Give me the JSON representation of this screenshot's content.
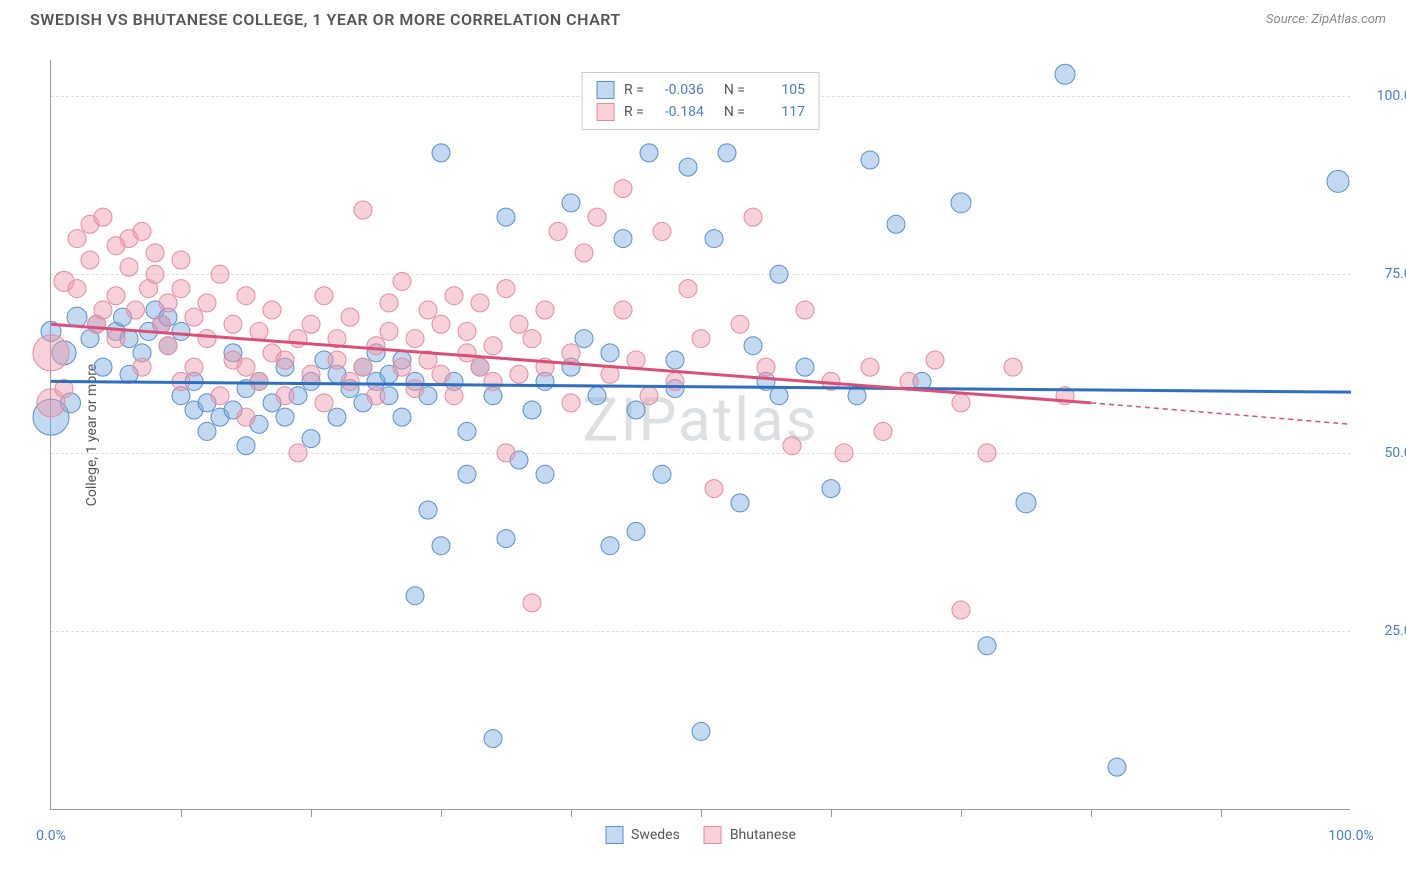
{
  "title": "SWEDISH VS BHUTANESE COLLEGE, 1 YEAR OR MORE CORRELATION CHART",
  "source": "Source: ZipAtlas.com",
  "ylabel": "College, 1 year or more",
  "watermark": "ZIPatlas",
  "xlim": [
    0,
    100
  ],
  "ylim": [
    0,
    105
  ],
  "yticks": [
    {
      "v": 25,
      "label": "25.0%"
    },
    {
      "v": 50,
      "label": "50.0%"
    },
    {
      "v": 75,
      "label": "75.0%"
    },
    {
      "v": 100,
      "label": "100.0%"
    }
  ],
  "xticks_minor": [
    10,
    20,
    30,
    40,
    50,
    60,
    70,
    80,
    90
  ],
  "xlabels": [
    {
      "v": 0,
      "label": "0.0%"
    },
    {
      "v": 100,
      "label": "100.0%"
    }
  ],
  "series": [
    {
      "name": "Swedes",
      "color_fill": "rgba(120, 170, 225, 0.45)",
      "color_stroke": "#5b8fc9",
      "line_color": "#2e6fc0",
      "stats": {
        "R": "-0.036",
        "N": "105"
      },
      "trend": {
        "x1": 0,
        "y1": 60,
        "x2": 100,
        "y2": 58.5
      },
      "points": [
        [
          0,
          55,
          18
        ],
        [
          1,
          64,
          12
        ],
        [
          1.5,
          57,
          10
        ],
        [
          0,
          67,
          10
        ],
        [
          2,
          69,
          10
        ],
        [
          3,
          66,
          9
        ],
        [
          3.5,
          68,
          9
        ],
        [
          4,
          62,
          9
        ],
        [
          5,
          67,
          9
        ],
        [
          5.5,
          69,
          9
        ],
        [
          6,
          66,
          9
        ],
        [
          6,
          61,
          9
        ],
        [
          7,
          64,
          9
        ],
        [
          7.5,
          67,
          9
        ],
        [
          8,
          70,
          9
        ],
        [
          8.5,
          68,
          9
        ],
        [
          9,
          65,
          9
        ],
        [
          9,
          69,
          9
        ],
        [
          10,
          67,
          9
        ],
        [
          10,
          58,
          9
        ],
        [
          11,
          60,
          9
        ],
        [
          11,
          56,
          9
        ],
        [
          12,
          57,
          9
        ],
        [
          12,
          53,
          9
        ],
        [
          13,
          55,
          9
        ],
        [
          14,
          56,
          9
        ],
        [
          14,
          64,
          9
        ],
        [
          15,
          59,
          9
        ],
        [
          15,
          51,
          9
        ],
        [
          16,
          54,
          9
        ],
        [
          16,
          60,
          9
        ],
        [
          17,
          57,
          9
        ],
        [
          18,
          55,
          9
        ],
        [
          18,
          62,
          9
        ],
        [
          19,
          58,
          9
        ],
        [
          20,
          60,
          9
        ],
        [
          20,
          52,
          9
        ],
        [
          21,
          63,
          9
        ],
        [
          22,
          61,
          9
        ],
        [
          22,
          55,
          9
        ],
        [
          23,
          59,
          9
        ],
        [
          24,
          62,
          9
        ],
        [
          24,
          57,
          9
        ],
        [
          25,
          60,
          9
        ],
        [
          25,
          64,
          9
        ],
        [
          26,
          58,
          9
        ],
        [
          26,
          61,
          9
        ],
        [
          27,
          55,
          9
        ],
        [
          27,
          63,
          9
        ],
        [
          28,
          30,
          9
        ],
        [
          28,
          60,
          9
        ],
        [
          29,
          58,
          9
        ],
        [
          29,
          42,
          9
        ],
        [
          30,
          37,
          9
        ],
        [
          30,
          92,
          9
        ],
        [
          31,
          60,
          9
        ],
        [
          32,
          53,
          9
        ],
        [
          32,
          47,
          9
        ],
        [
          33,
          62,
          9
        ],
        [
          34,
          58,
          9
        ],
        [
          34,
          10,
          9
        ],
        [
          35,
          38,
          9
        ],
        [
          35,
          83,
          9
        ],
        [
          36,
          49,
          9
        ],
        [
          37,
          56,
          9
        ],
        [
          38,
          47,
          9
        ],
        [
          38,
          60,
          9
        ],
        [
          40,
          85,
          9
        ],
        [
          40,
          62,
          9
        ],
        [
          41,
          66,
          9
        ],
        [
          42,
          58,
          9
        ],
        [
          43,
          37,
          9
        ],
        [
          43,
          64,
          9
        ],
        [
          44,
          80,
          9
        ],
        [
          45,
          56,
          9
        ],
        [
          45,
          39,
          9
        ],
        [
          46,
          92,
          9
        ],
        [
          47,
          47,
          9
        ],
        [
          48,
          59,
          9
        ],
        [
          48,
          63,
          9
        ],
        [
          49,
          90,
          9
        ],
        [
          50,
          11,
          9
        ],
        [
          51,
          80,
          9
        ],
        [
          52,
          92,
          9
        ],
        [
          53,
          43,
          9
        ],
        [
          54,
          65,
          9
        ],
        [
          55,
          60,
          9
        ],
        [
          56,
          75,
          9
        ],
        [
          56,
          58,
          9
        ],
        [
          58,
          62,
          9
        ],
        [
          60,
          45,
          9
        ],
        [
          62,
          58,
          9
        ],
        [
          63,
          91,
          9
        ],
        [
          65,
          82,
          9
        ],
        [
          67,
          60,
          9
        ],
        [
          70,
          85,
          10
        ],
        [
          72,
          23,
          9
        ],
        [
          75,
          43,
          10
        ],
        [
          78,
          103,
          10
        ],
        [
          82,
          6,
          9
        ],
        [
          99,
          88,
          11
        ]
      ]
    },
    {
      "name": "Bhutanese",
      "color_fill": "rgba(240, 150, 170, 0.45)",
      "color_stroke": "#e28ca0",
      "line_color": "#d94f78",
      "stats": {
        "R": "-0.184",
        "N": "117"
      },
      "trend": {
        "x1": 0,
        "y1": 68,
        "x2": 80,
        "y2": 57
      },
      "trend_dash": {
        "x1": 80,
        "y1": 57,
        "x2": 100,
        "y2": 54
      },
      "points": [
        [
          0,
          64,
          18
        ],
        [
          0,
          57,
          14
        ],
        [
          1,
          74,
          10
        ],
        [
          1,
          59,
          9
        ],
        [
          2,
          80,
          9
        ],
        [
          2,
          73,
          9
        ],
        [
          3,
          82,
          9
        ],
        [
          3,
          77,
          9
        ],
        [
          3.5,
          68,
          9
        ],
        [
          4,
          83,
          9
        ],
        [
          4,
          70,
          9
        ],
        [
          5,
          79,
          9
        ],
        [
          5,
          66,
          9
        ],
        [
          5,
          72,
          9
        ],
        [
          6,
          80,
          9
        ],
        [
          6,
          76,
          9
        ],
        [
          6.5,
          70,
          9
        ],
        [
          7,
          81,
          9
        ],
        [
          7,
          62,
          9
        ],
        [
          7.5,
          73,
          9
        ],
        [
          8,
          75,
          9
        ],
        [
          8,
          78,
          9
        ],
        [
          8.5,
          68,
          9
        ],
        [
          9,
          71,
          9
        ],
        [
          9,
          65,
          9
        ],
        [
          10,
          73,
          9
        ],
        [
          10,
          77,
          9
        ],
        [
          10,
          60,
          9
        ],
        [
          11,
          69,
          9
        ],
        [
          11,
          62,
          9
        ],
        [
          12,
          66,
          9
        ],
        [
          12,
          71,
          9
        ],
        [
          13,
          75,
          9
        ],
        [
          13,
          58,
          9
        ],
        [
          14,
          63,
          9
        ],
        [
          14,
          68,
          9
        ],
        [
          15,
          55,
          9
        ],
        [
          15,
          62,
          9
        ],
        [
          15,
          72,
          9
        ],
        [
          16,
          67,
          9
        ],
        [
          16,
          60,
          9
        ],
        [
          17,
          64,
          9
        ],
        [
          17,
          70,
          9
        ],
        [
          18,
          58,
          9
        ],
        [
          18,
          63,
          9
        ],
        [
          19,
          50,
          9
        ],
        [
          19,
          66,
          9
        ],
        [
          20,
          61,
          9
        ],
        [
          20,
          68,
          9
        ],
        [
          21,
          72,
          9
        ],
        [
          21,
          57,
          9
        ],
        [
          22,
          63,
          9
        ],
        [
          22,
          66,
          9
        ],
        [
          23,
          60,
          9
        ],
        [
          23,
          69,
          9
        ],
        [
          24,
          84,
          9
        ],
        [
          24,
          62,
          9
        ],
        [
          25,
          65,
          9
        ],
        [
          25,
          58,
          9
        ],
        [
          26,
          67,
          9
        ],
        [
          26,
          71,
          9
        ],
        [
          27,
          62,
          9
        ],
        [
          27,
          74,
          9
        ],
        [
          28,
          66,
          9
        ],
        [
          28,
          59,
          9
        ],
        [
          29,
          70,
          9
        ],
        [
          29,
          63,
          9
        ],
        [
          30,
          61,
          9
        ],
        [
          30,
          68,
          9
        ],
        [
          31,
          72,
          9
        ],
        [
          31,
          58,
          9
        ],
        [
          32,
          64,
          9
        ],
        [
          32,
          67,
          9
        ],
        [
          33,
          62,
          9
        ],
        [
          33,
          71,
          9
        ],
        [
          34,
          60,
          9
        ],
        [
          34,
          65,
          9
        ],
        [
          35,
          73,
          9
        ],
        [
          35,
          50,
          9
        ],
        [
          36,
          68,
          9
        ],
        [
          36,
          61,
          9
        ],
        [
          37,
          29,
          9
        ],
        [
          37,
          66,
          9
        ],
        [
          38,
          62,
          9
        ],
        [
          38,
          70,
          9
        ],
        [
          39,
          81,
          9
        ],
        [
          40,
          64,
          9
        ],
        [
          40,
          57,
          9
        ],
        [
          41,
          78,
          9
        ],
        [
          42,
          83,
          9
        ],
        [
          43,
          61,
          9
        ],
        [
          44,
          70,
          9
        ],
        [
          44,
          87,
          9
        ],
        [
          45,
          63,
          9
        ],
        [
          46,
          58,
          9
        ],
        [
          47,
          81,
          9
        ],
        [
          48,
          60,
          9
        ],
        [
          49,
          73,
          9
        ],
        [
          50,
          66,
          9
        ],
        [
          51,
          45,
          9
        ],
        [
          53,
          68,
          9
        ],
        [
          54,
          83,
          9
        ],
        [
          55,
          62,
          9
        ],
        [
          57,
          51,
          9
        ],
        [
          58,
          70,
          9
        ],
        [
          60,
          60,
          9
        ],
        [
          61,
          50,
          9
        ],
        [
          63,
          62,
          9
        ],
        [
          64,
          53,
          9
        ],
        [
          66,
          60,
          9
        ],
        [
          68,
          63,
          9
        ],
        [
          70,
          57,
          9
        ],
        [
          72,
          50,
          9
        ],
        [
          74,
          62,
          9
        ],
        [
          70,
          28,
          9
        ],
        [
          78,
          58,
          9
        ]
      ]
    }
  ],
  "legend": [
    {
      "label": "Swedes",
      "fill": "rgba(120, 170, 225, 0.45)",
      "stroke": "#5b8fc9"
    },
    {
      "label": "Bhutanese",
      "fill": "rgba(240, 150, 170, 0.45)",
      "stroke": "#e28ca0"
    }
  ]
}
